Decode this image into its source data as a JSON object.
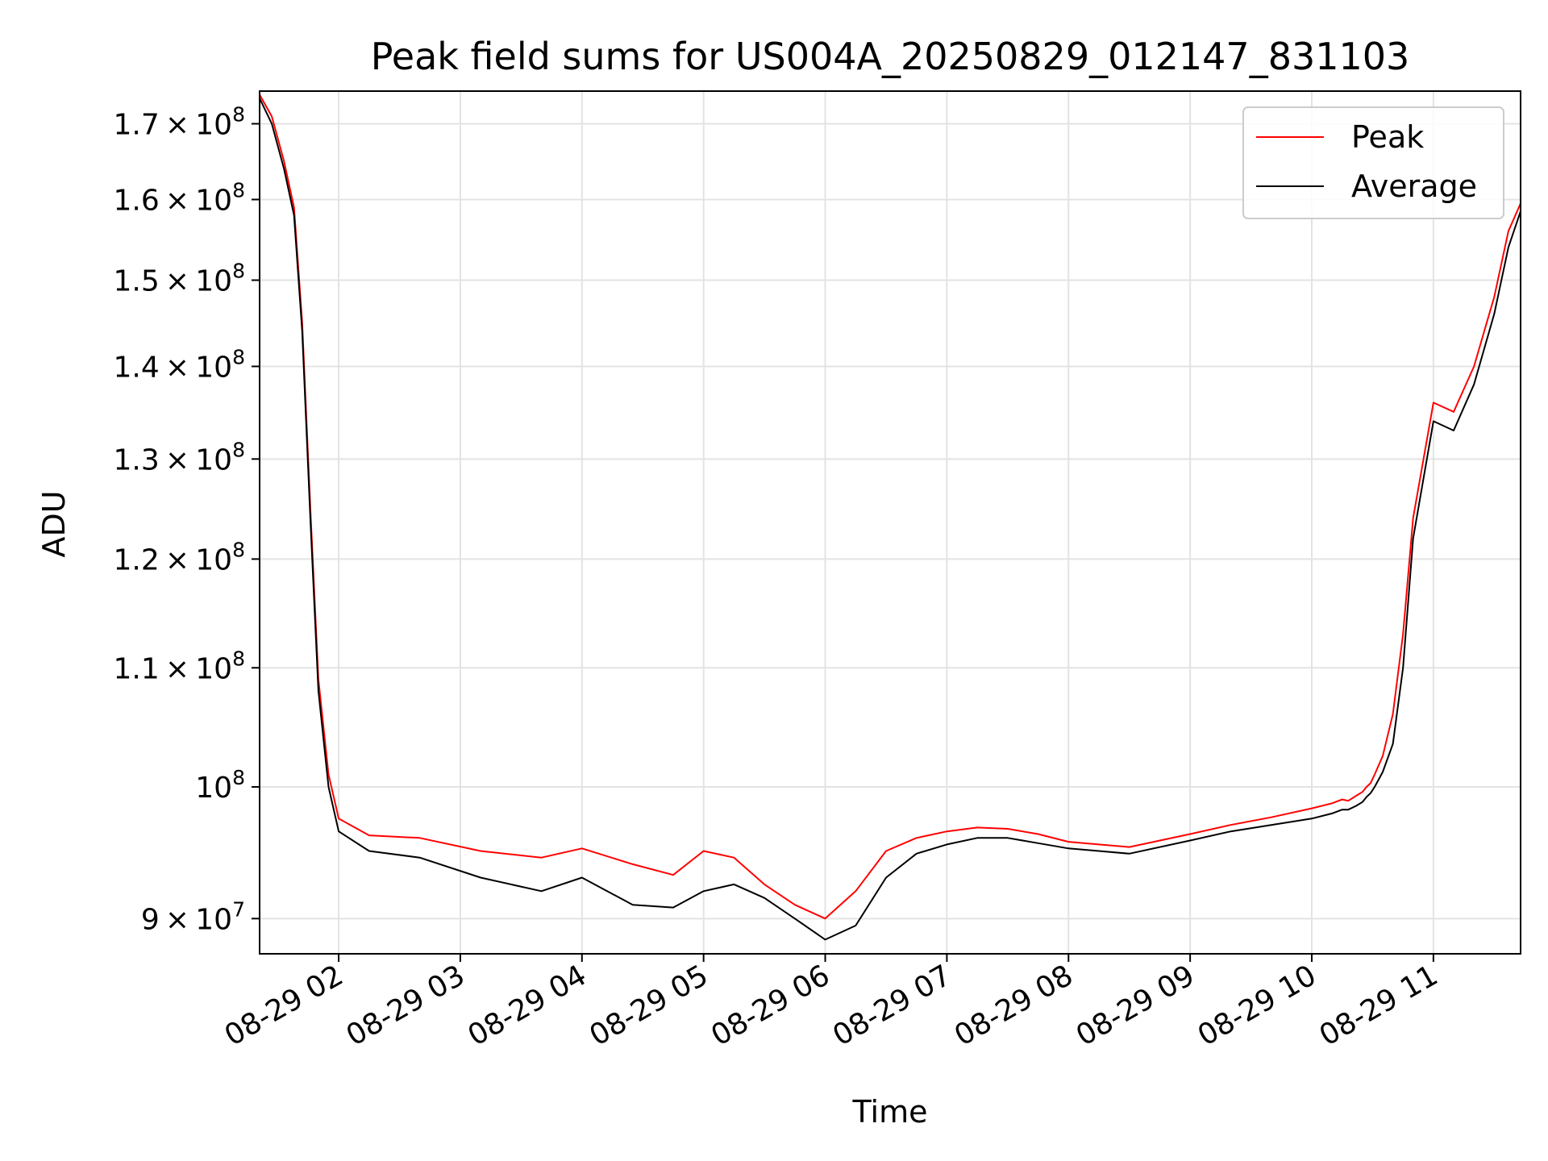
{
  "chart_data": {
    "type": "line",
    "title": "Peak field sums for US004A_20250829_012147_831103",
    "xlabel": "Time",
    "ylabel": "ADU",
    "y_scale": "log",
    "grid": true,
    "legend_position": "top-right",
    "xlim": [
      "2025-08-29 01:21",
      "2025-08-29 11:43"
    ],
    "ylim": [
      87500000,
      174500000
    ],
    "x_ticks": [
      "08-29 02",
      "08-29 03",
      "08-29 04",
      "08-29 05",
      "08-29 06",
      "08-29 07",
      "08-29 08",
      "08-29 09",
      "08-29 10",
      "08-29 11"
    ],
    "y_ticks": [
      {
        "value": 90000000,
        "mantissa": "9",
        "exp": "7"
      },
      {
        "value": 100000000,
        "mantissa": "",
        "exp": "8"
      },
      {
        "value": 110000000,
        "mantissa": "1.1",
        "exp": "8"
      },
      {
        "value": 120000000,
        "mantissa": "1.2",
        "exp": "8"
      },
      {
        "value": 130000000,
        "mantissa": "1.3",
        "exp": "8"
      },
      {
        "value": 140000000,
        "mantissa": "1.4",
        "exp": "8"
      },
      {
        "value": 150000000,
        "mantissa": "1.5",
        "exp": "8"
      },
      {
        "value": 160000000,
        "mantissa": "1.6",
        "exp": "8"
      },
      {
        "value": 170000000,
        "mantissa": "1.7",
        "exp": "8"
      }
    ],
    "series": [
      {
        "name": "Peak",
        "color": "#ff0000",
        "x": [
          "2025-08-29 01:21",
          "2025-08-29 01:27",
          "2025-08-29 01:33",
          "2025-08-29 01:38",
          "2025-08-29 01:42",
          "2025-08-29 01:46",
          "2025-08-29 01:50",
          "2025-08-29 01:55",
          "2025-08-29 02:00",
          "2025-08-29 02:15",
          "2025-08-29 02:40",
          "2025-08-29 03:10",
          "2025-08-29 03:40",
          "2025-08-29 04:00",
          "2025-08-29 04:25",
          "2025-08-29 04:45",
          "2025-08-29 05:00",
          "2025-08-29 05:15",
          "2025-08-29 05:30",
          "2025-08-29 05:45",
          "2025-08-29 06:00",
          "2025-08-29 06:15",
          "2025-08-29 06:30",
          "2025-08-29 06:45",
          "2025-08-29 07:00",
          "2025-08-29 07:15",
          "2025-08-29 07:30",
          "2025-08-29 07:45",
          "2025-08-29 08:00",
          "2025-08-29 08:15",
          "2025-08-29 08:30",
          "2025-08-29 09:00",
          "2025-08-29 09:20",
          "2025-08-29 09:40",
          "2025-08-29 10:00",
          "2025-08-29 10:10",
          "2025-08-29 10:15",
          "2025-08-29 10:18",
          "2025-08-29 10:22",
          "2025-08-29 10:25",
          "2025-08-29 10:27",
          "2025-08-29 10:29",
          "2025-08-29 10:31",
          "2025-08-29 10:35",
          "2025-08-29 10:40",
          "2025-08-29 10:45",
          "2025-08-29 10:50",
          "2025-08-29 11:00",
          "2025-08-29 11:10",
          "2025-08-29 11:20",
          "2025-08-29 11:30",
          "2025-08-29 11:37",
          "2025-08-29 11:43"
        ],
        "y": [
          174000000,
          171000000,
          165000000,
          159000000,
          145000000,
          125000000,
          109000000,
          101000000,
          97500000,
          96200000,
          96000000,
          95000000,
          94500000,
          95200000,
          94000000,
          93200000,
          95000000,
          94500000,
          92500000,
          91000000,
          90000000,
          92000000,
          95000000,
          96000000,
          96500000,
          96800000,
          96700000,
          96300000,
          95700000,
          95500000,
          95300000,
          96300000,
          97000000,
          97600000,
          98300000,
          98700000,
          99000000,
          98900000,
          99300000,
          99600000,
          100000000,
          100300000,
          101000000,
          102500000,
          106000000,
          113000000,
          124000000,
          136000000,
          135000000,
          140000000,
          148000000,
          156000000,
          159500000
        ]
      },
      {
        "name": "Average",
        "color": "#000000",
        "x": [
          "2025-08-29 01:21",
          "2025-08-29 01:27",
          "2025-08-29 01:33",
          "2025-08-29 01:38",
          "2025-08-29 01:42",
          "2025-08-29 01:46",
          "2025-08-29 01:50",
          "2025-08-29 01:55",
          "2025-08-29 02:00",
          "2025-08-29 02:15",
          "2025-08-29 02:40",
          "2025-08-29 03:10",
          "2025-08-29 03:40",
          "2025-08-29 04:00",
          "2025-08-29 04:25",
          "2025-08-29 04:45",
          "2025-08-29 05:00",
          "2025-08-29 05:15",
          "2025-08-29 05:30",
          "2025-08-29 05:45",
          "2025-08-29 06:00",
          "2025-08-29 06:15",
          "2025-08-29 06:30",
          "2025-08-29 06:45",
          "2025-08-29 07:00",
          "2025-08-29 07:15",
          "2025-08-29 07:30",
          "2025-08-29 07:45",
          "2025-08-29 08:00",
          "2025-08-29 08:15",
          "2025-08-29 08:30",
          "2025-08-29 09:00",
          "2025-08-29 09:20",
          "2025-08-29 09:40",
          "2025-08-29 10:00",
          "2025-08-29 10:10",
          "2025-08-29 10:15",
          "2025-08-29 10:18",
          "2025-08-29 10:22",
          "2025-08-29 10:25",
          "2025-08-29 10:27",
          "2025-08-29 10:29",
          "2025-08-29 10:31",
          "2025-08-29 10:35",
          "2025-08-29 10:40",
          "2025-08-29 10:45",
          "2025-08-29 10:50",
          "2025-08-29 11:00",
          "2025-08-29 11:10",
          "2025-08-29 11:20",
          "2025-08-29 11:30",
          "2025-08-29 11:37",
          "2025-08-29 11:43"
        ],
        "y": [
          173500000,
          170000000,
          164000000,
          158000000,
          144000000,
          124000000,
          108000000,
          100000000,
          96500000,
          95000000,
          94500000,
          93000000,
          92000000,
          93000000,
          91000000,
          90800000,
          92000000,
          92500000,
          91500000,
          90000000,
          88500000,
          89500000,
          93000000,
          94800000,
          95500000,
          96000000,
          96000000,
          95600000,
          95200000,
          95000000,
          94800000,
          95800000,
          96500000,
          97000000,
          97500000,
          97900000,
          98200000,
          98200000,
          98500000,
          98800000,
          99200000,
          99500000,
          100000000,
          101200000,
          103500000,
          110000000,
          122000000,
          134000000,
          133000000,
          138000000,
          146000000,
          154000000,
          158500000
        ]
      }
    ]
  }
}
